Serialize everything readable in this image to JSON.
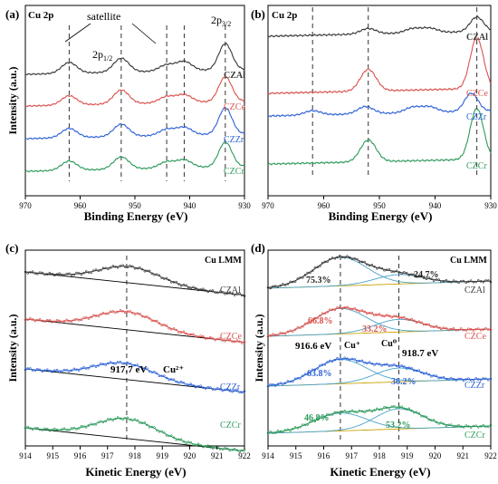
{
  "colors": {
    "CZAl": "#3a3a3a",
    "CZCe": "#d9534f",
    "CZZr": "#2f63d6",
    "CZCr": "#2e9a5c",
    "fit_total": "#3a3a3a",
    "baseline": "#c9a100",
    "fit_peak": "#4aa3c8",
    "guide": "#333333"
  },
  "panels": [
    {
      "letter": "(a)",
      "title": "Cu 2p",
      "xlabel": "Binding Energy (eV)",
      "ylabel": "Intensity (a.u.)",
      "xlim": [
        970,
        930
      ],
      "xticks": [
        "970",
        "960",
        "950",
        "940",
        "930"
      ],
      "xtick_values": [
        970,
        960,
        950,
        940,
        930
      ],
      "series": [
        "CZAl",
        "CZCe",
        "CZZr",
        "CZCr"
      ],
      "guides": [
        962.0,
        952.5,
        944.2,
        941.0,
        933.5
      ],
      "annotations": [
        "satellite",
        "2p1/2",
        "2p3/2"
      ]
    },
    {
      "letter": "(b)",
      "title": "Cu 2p",
      "xlabel": "Binding Energy (eV)",
      "ylabel": "",
      "xlim": [
        970,
        930
      ],
      "xticks": [
        "970",
        "960",
        "950",
        "940",
        "930"
      ],
      "xtick_values": [
        970,
        960,
        950,
        940,
        930
      ],
      "series": [
        "CZAl",
        "CZCe",
        "CZZr",
        "CZCr"
      ],
      "guides": [
        962.0,
        952.0,
        932.5
      ]
    },
    {
      "letter": "(c)",
      "title": "",
      "xlabel": "Kinetic Energy (eV)",
      "ylabel": "Intensity (a.u.)",
      "xlim": [
        914,
        922
      ],
      "xticks": [
        "914",
        "915",
        "916",
        "917",
        "918",
        "919",
        "920",
        "921",
        "922"
      ],
      "xtick_values": [
        914,
        915,
        916,
        917,
        918,
        919,
        920,
        921,
        922
      ],
      "series": [
        "CZAl",
        "CZCe",
        "CZZr",
        "CZCr"
      ],
      "guides": [
        917.7
      ],
      "peak_label": "917.7 eV",
      "species_label": "Cu²⁺",
      "corner_label": "Cu LMM"
    },
    {
      "letter": "(d)",
      "title": "",
      "xlabel": "Kinetic Energy (eV)",
      "ylabel": "Intensity (a.u.)",
      "xlim": [
        914,
        922
      ],
      "xticks": [
        "914",
        "915",
        "916",
        "917",
        "918",
        "919",
        "920",
        "921",
        "922"
      ],
      "xtick_values": [
        914,
        915,
        916,
        917,
        918,
        919,
        920,
        921,
        922
      ],
      "series": [
        "CZAl",
        "CZCe",
        "CZZr",
        "CZCr"
      ],
      "guides": [
        916.6,
        918.7
      ],
      "corner_label": "Cu LMM",
      "peak_labels": [
        "916.6 eV",
        "918.7 eV"
      ],
      "species_labels": [
        "Cu⁺",
        "Cu⁰"
      ],
      "percentages": {
        "CZAl": [
          "75.3%",
          "24.7%"
        ],
        "CZCe": [
          "66.8%",
          "33.2%"
        ],
        "CZZr": [
          "63.8%",
          "36.2%"
        ],
        "CZCr": [
          "46.8%",
          "53.2%"
        ]
      }
    }
  ],
  "chart_data": [
    {
      "type": "line",
      "title": "Cu 2p",
      "xlabel": "Binding Energy (eV)",
      "ylabel": "Intensity (a.u.)",
      "xlim": [
        970,
        930
      ],
      "series": [
        {
          "name": "CZAl",
          "peaks": [
            {
              "x": 962.0,
              "h": 0.35
            },
            {
              "x": 952.5,
              "h": 0.45
            },
            {
              "x": 944.2,
              "h": 0.2
            },
            {
              "x": 941.0,
              "h": 0.3
            },
            {
              "x": 933.5,
              "h": 0.85
            }
          ]
        },
        {
          "name": "CZCe",
          "peaks": [
            {
              "x": 962.0,
              "h": 0.3
            },
            {
              "x": 952.5,
              "h": 0.45
            },
            {
              "x": 944.2,
              "h": 0.2
            },
            {
              "x": 941.0,
              "h": 0.25
            },
            {
              "x": 933.5,
              "h": 0.8
            }
          ]
        },
        {
          "name": "CZZr",
          "peaks": [
            {
              "x": 962.0,
              "h": 0.3
            },
            {
              "x": 952.5,
              "h": 0.4
            },
            {
              "x": 944.2,
              "h": 0.2
            },
            {
              "x": 941.0,
              "h": 0.25
            },
            {
              "x": 933.5,
              "h": 0.85
            }
          ]
        },
        {
          "name": "CZCr",
          "peaks": [
            {
              "x": 962.0,
              "h": 0.3
            },
            {
              "x": 952.5,
              "h": 0.4
            },
            {
              "x": 944.2,
              "h": 0.2
            },
            {
              "x": 941.0,
              "h": 0.25
            },
            {
              "x": 933.5,
              "h": 0.8
            }
          ]
        }
      ]
    },
    {
      "type": "line",
      "title": "Cu 2p",
      "xlabel": "Binding Energy (eV)",
      "xlim": [
        970,
        930
      ],
      "series": [
        {
          "name": "CZAl",
          "peaks": [
            {
              "x": 952.0,
              "h": 0.15
            },
            {
              "x": 944.0,
              "h": 0.12
            },
            {
              "x": 941.0,
              "h": 0.12
            },
            {
              "x": 932.5,
              "h": 0.4
            }
          ]
        },
        {
          "name": "CZCe",
          "peaks": [
            {
              "x": 952.0,
              "h": 0.6
            },
            {
              "x": 932.5,
              "h": 1.4
            }
          ]
        },
        {
          "name": "CZZr",
          "peaks": [
            {
              "x": 962.0,
              "h": 0.12
            },
            {
              "x": 952.5,
              "h": 0.2
            },
            {
              "x": 944.0,
              "h": 0.15
            },
            {
              "x": 941.0,
              "h": 0.15
            },
            {
              "x": 933.5,
              "h": 0.5
            }
          ]
        },
        {
          "name": "CZCr",
          "peaks": [
            {
              "x": 952.0,
              "h": 0.6
            },
            {
              "x": 932.5,
              "h": 1.4
            }
          ]
        }
      ]
    },
    {
      "type": "scatter",
      "corner_label": "Cu LMM",
      "xlabel": "Kinetic Energy (eV)",
      "ylabel": "Intensity (a.u.)",
      "xlim": [
        914,
        922
      ],
      "series": [
        {
          "name": "CZAl",
          "peak_x": 917.8,
          "amplitude": 0.45
        },
        {
          "name": "CZCe",
          "peak_x": 917.7,
          "amplitude": 0.5
        },
        {
          "name": "CZZr",
          "peak_x": 917.6,
          "amplitude": 0.45
        },
        {
          "name": "CZCr",
          "peak_x": 917.7,
          "amplitude": 0.55
        }
      ]
    },
    {
      "type": "scatter",
      "corner_label": "Cu LMM",
      "xlabel": "Kinetic Energy (eV)",
      "ylabel": "Intensity (a.u.)",
      "xlim": [
        914,
        922
      ],
      "series": [
        {
          "name": "CZAl",
          "Cu+_percent": 75.3,
          "Cu0_percent": 24.7
        },
        {
          "name": "CZCe",
          "Cu+_percent": 66.8,
          "Cu0_percent": 33.2
        },
        {
          "name": "CZZr",
          "Cu+_percent": 63.8,
          "Cu0_percent": 36.2
        },
        {
          "name": "CZCr",
          "Cu+_percent": 46.8,
          "Cu0_percent": 53.2
        }
      ]
    }
  ]
}
